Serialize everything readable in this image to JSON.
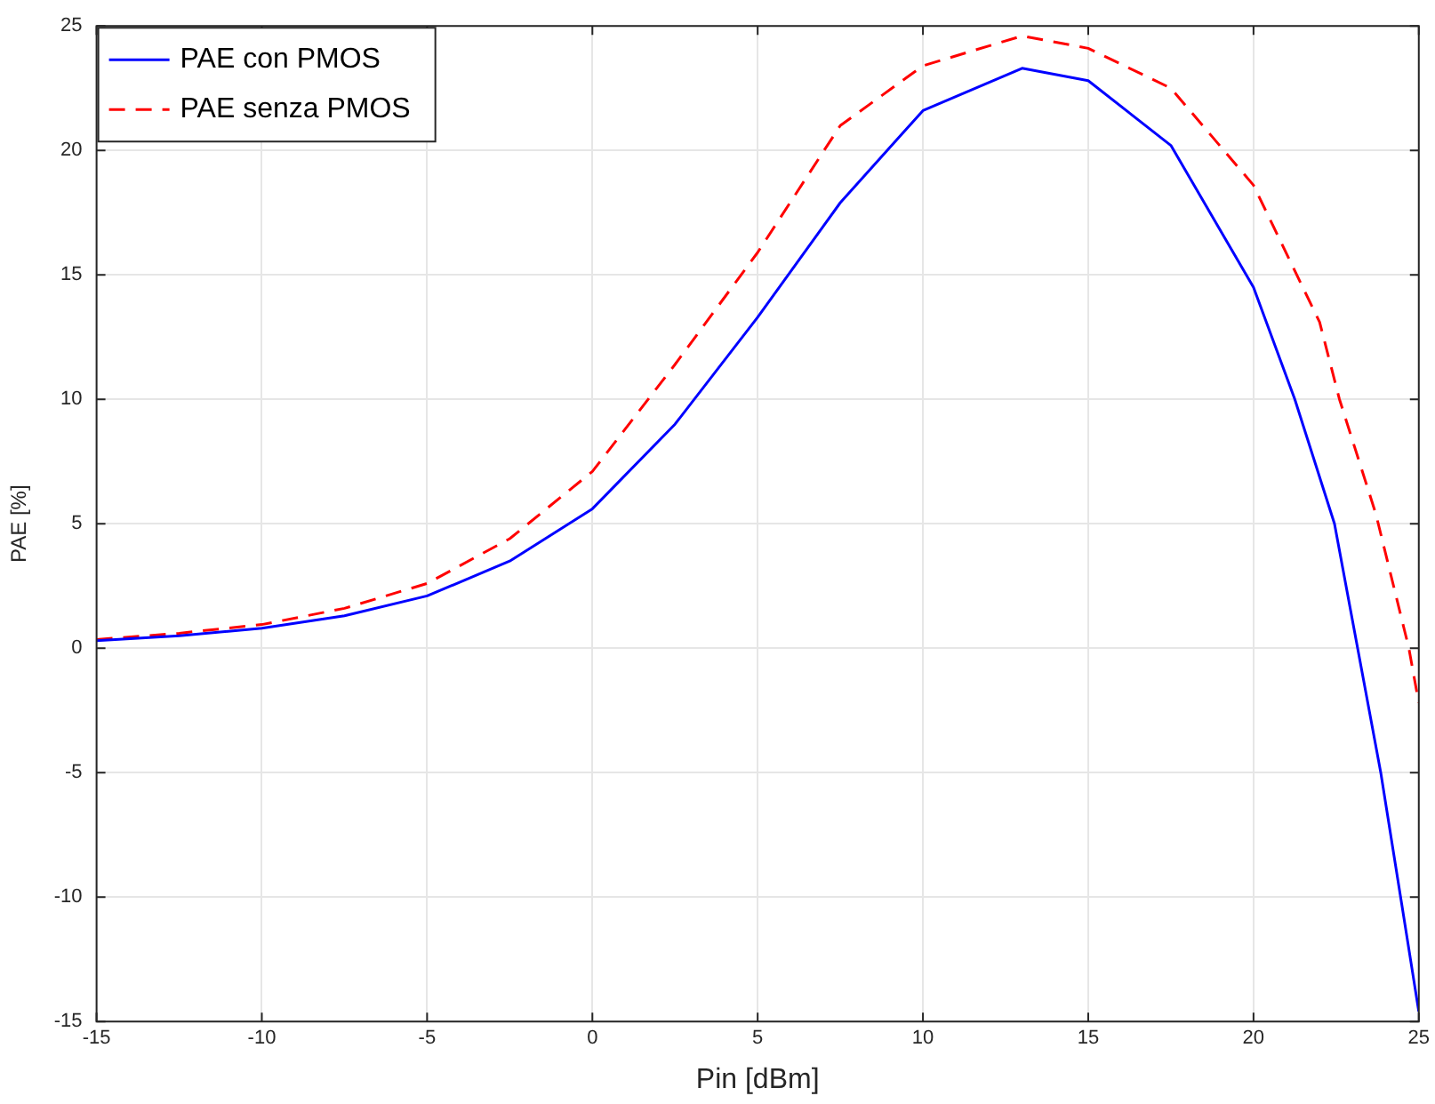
{
  "chart_data": {
    "type": "line",
    "xlabel": "Pin [dBm]",
    "ylabel": "PAE [%]",
    "xlim": [
      -15,
      25
    ],
    "xticks": [
      -15,
      -10,
      -5,
      0,
      5,
      10,
      15,
      20,
      25
    ],
    "ylim": [
      -15,
      25
    ],
    "yticks": [
      -15,
      -10,
      -5,
      0,
      5,
      10,
      15,
      20,
      25
    ],
    "grid": true,
    "legend": "top left",
    "marker": "none",
    "series": [
      {
        "name": "PAE con PMOS",
        "color": "#0000ff",
        "line_style": "solid",
        "x": [
          -15,
          -12.5,
          -10,
          -7.5,
          -5,
          -2.5,
          0,
          2.5,
          5,
          7.5,
          10,
          13,
          15,
          17.5,
          20,
          21.25,
          22.45,
          23.15,
          23.85,
          24.45,
          25
        ],
        "values": [
          0.3,
          0.5,
          0.8,
          1.3,
          2.1,
          3.5,
          5.6,
          9.0,
          13.3,
          17.9,
          21.6,
          23.3,
          22.8,
          20.2,
          14.5,
          10,
          5,
          0,
          -5,
          -10,
          -14.6
        ]
      },
      {
        "name": "PAE senza PMOS",
        "color": "#ff0000",
        "line_style": "dashed",
        "x": [
          -15,
          -12.5,
          -10,
          -7.5,
          -5,
          -2.5,
          0,
          2.5,
          5,
          7.5,
          10,
          13,
          15,
          17.5,
          20,
          22,
          22.6,
          23.7,
          24.7,
          25
        ],
        "values": [
          0.35,
          0.6,
          0.95,
          1.6,
          2.6,
          4.4,
          7.1,
          11.4,
          15.9,
          21,
          23.4,
          24.6,
          24.1,
          22.5,
          18.6,
          13.1,
          10,
          5.4,
          0,
          -2.2
        ]
      }
    ]
  }
}
